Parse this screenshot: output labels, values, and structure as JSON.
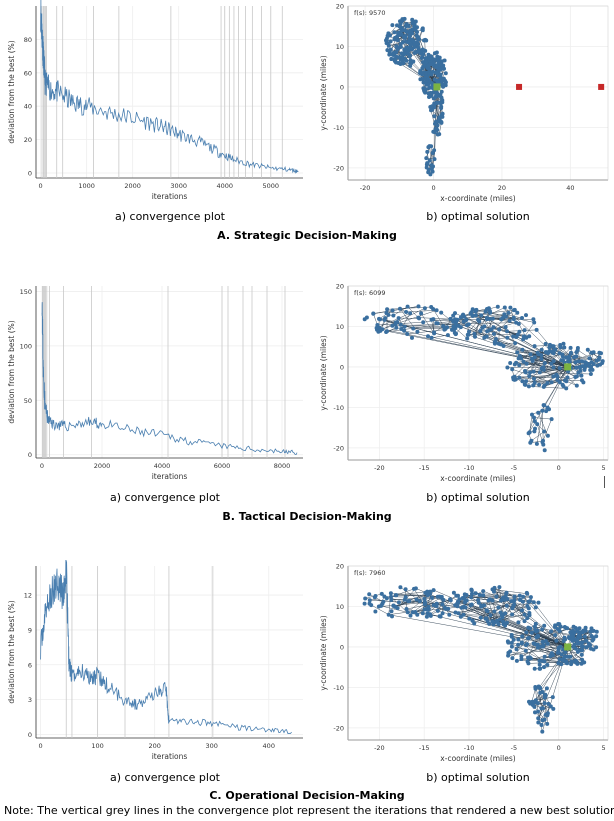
{
  "sections": [
    {
      "title": "A. Strategic Decision-Making",
      "conv_caption": "a) convergence plot",
      "sol_caption": "b) optimal solution",
      "fs_label": "f(s): 9570"
    },
    {
      "title": "B. Tactical Decision-Making",
      "conv_caption": "a) convergence plot",
      "sol_caption": "b) optimal solution",
      "fs_label": "f(s): 6099"
    },
    {
      "title": "C. Operational Decision-Making",
      "conv_caption": "a) convergence plot",
      "sol_caption": "b) optimal solution",
      "fs_label": "f(s): 7960"
    }
  ],
  "note": "Note: The vertical grey lines in the convergence plot represent the iterations that rendered a new best solution",
  "colors": {
    "line": "#4a7fb0",
    "node": "#3a6f9f",
    "depot": "#7cb342",
    "facility": "#c62828",
    "grid": "#eeeeee",
    "vline": "#c8c8c8"
  },
  "chart_data": [
    {
      "type": "line",
      "panel": "A-convergence",
      "xlabel": "iterations",
      "ylabel": "deviation from the best (%)",
      "xlim": [
        -100,
        5700
      ],
      "ylim": [
        -3,
        100
      ],
      "xticks": [
        0,
        1000,
        2000,
        3000,
        4000,
        5000
      ],
      "yticks": [
        0,
        20,
        40,
        60,
        80
      ],
      "x": [
        0,
        30,
        60,
        100,
        200,
        400,
        700,
        1000,
        1500,
        2000,
        2500,
        2800,
        3100,
        3500,
        3900,
        4200,
        4600,
        5000,
        5400,
        5600
      ],
      "y": [
        98,
        85,
        70,
        55,
        50,
        48,
        42,
        40,
        36,
        33,
        29,
        26,
        22,
        18,
        12,
        8,
        5,
        3,
        2,
        1
      ],
      "best_iterations": [
        30,
        60,
        80,
        110,
        130,
        350,
        480,
        1150,
        1700,
        2830,
        3920,
        4000,
        4100,
        4200,
        4300,
        4450,
        4600,
        4800,
        5000,
        5250
      ]
    },
    {
      "type": "scatter",
      "panel": "A-solution",
      "xlabel": "x-coordinate (miles)",
      "ylabel": "y-coordinate (miles)",
      "xlim": [
        -25,
        51
      ],
      "ylim": [
        -23,
        20
      ],
      "xticks": [
        -20,
        0,
        20,
        40
      ],
      "yticks": [
        -20,
        -10,
        0,
        10,
        20
      ],
      "depot": [
        1,
        0
      ],
      "facilities": [
        [
          25,
          0
        ],
        [
          49,
          0
        ]
      ]
    },
    {
      "type": "line",
      "panel": "B-convergence",
      "xlabel": "iterations",
      "ylabel": "deviation from the best (%)",
      "xlim": [
        -200,
        8700
      ],
      "ylim": [
        -3,
        155
      ],
      "xticks": [
        0,
        2000,
        4000,
        6000,
        8000
      ],
      "yticks": [
        0,
        50,
        100,
        150
      ],
      "x": [
        0,
        40,
        100,
        200,
        400,
        800,
        1500,
        2000,
        3000,
        4000,
        5000,
        6000,
        7000,
        8000,
        8500
      ],
      "y": [
        150,
        80,
        45,
        32,
        28,
        26,
        30,
        28,
        22,
        18,
        12,
        8,
        5,
        3,
        2
      ],
      "best_iterations": [
        20,
        50,
        80,
        120,
        160,
        250,
        720,
        1650,
        4200,
        6000,
        6200,
        6700,
        7000,
        7500,
        8100
      ]
    },
    {
      "type": "scatter",
      "panel": "B-solution",
      "xlabel": "x-coordinate (miles)",
      "ylabel": "y-coordinate (miles)",
      "xlim": [
        -23.5,
        5.5
      ],
      "ylim": [
        -23,
        20
      ],
      "xticks": [
        -20,
        -15,
        -10,
        -5,
        0,
        5
      ],
      "yticks": [
        -20,
        -10,
        0,
        10,
        20
      ],
      "depot": [
        1,
        0
      ]
    },
    {
      "type": "line",
      "panel": "C-convergence",
      "xlabel": "iterations",
      "ylabel": "deviation from the best (%)",
      "xlim": [
        -8,
        460
      ],
      "ylim": [
        -0.3,
        14.5
      ],
      "xticks": [
        0,
        100,
        200,
        300,
        400
      ],
      "yticks": [
        0,
        3,
        6,
        9,
        12
      ],
      "x": [
        0,
        10,
        20,
        30,
        40,
        45,
        50,
        55,
        70,
        90,
        100,
        120,
        150,
        170,
        200,
        220,
        225,
        260,
        300,
        350,
        400,
        440
      ],
      "y": [
        7.5,
        11,
        12,
        13.5,
        12,
        14,
        6,
        5,
        5.5,
        5,
        5,
        4,
        3,
        2.5,
        3.5,
        4,
        1.2,
        1.1,
        1,
        0.6,
        0.4,
        0.2
      ],
      "best_iterations": [
        45,
        55,
        100,
        148,
        225,
        302
      ]
    },
    {
      "type": "scatter",
      "panel": "C-solution",
      "xlabel": "x-coordinate (miles)",
      "ylabel": "y-coordinate (miles)",
      "xlim": [
        -23.5,
        5.5
      ],
      "ylim": [
        -23,
        20
      ],
      "xticks": [
        -20,
        -15,
        -10,
        -5,
        0,
        5
      ],
      "yticks": [
        -20,
        -10,
        0,
        10,
        20
      ],
      "depot": [
        1,
        0
      ]
    }
  ]
}
